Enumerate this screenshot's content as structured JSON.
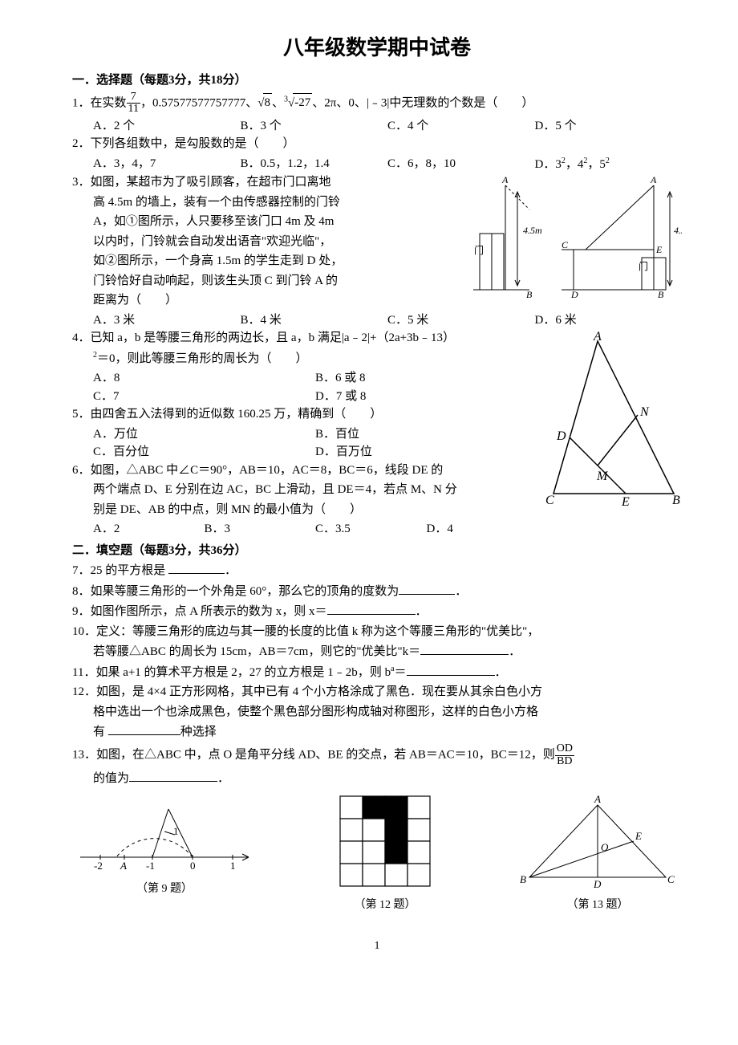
{
  "title": "八年级数学期中试卷",
  "section1": {
    "head": "一．选择题（每题3分，共18分）",
    "q1": {
      "stem_a": "1．在实数",
      "frac_n": "7",
      "frac_d": "11",
      "stem_b": "，0.57577577757777、",
      "sqrt8": "8",
      "stem_c": "、",
      "cbrt_idx": "3",
      "cbrt_rad": "-27",
      "stem_d": "、2π、0、|﹣3|中无理数的个数是（　　）",
      "A": "A．2 个",
      "B": "B．3 个",
      "C": "C．4 个",
      "D": "D．5 个"
    },
    "q2": {
      "stem": "2．下列各组数中，是勾股数的是（　　）",
      "A": "A．3，4，7",
      "B": "B．0.5，1.2，1.4",
      "C": "C．6，8，10",
      "D_a": "D．3",
      "D_s1": "2",
      "D_b": "，4",
      "D_s2": "2",
      "D_c": "，5",
      "D_s3": "2"
    },
    "q3": {
      "l1": "3．如图，某超市为了吸引顾客，在超市门口离地",
      "l2": "高 4.5m 的墙上，装有一个由传感器控制的门铃",
      "l3": "A，如①图所示，人只要移至该门口 4m 及 4m",
      "l4": "以内时，门铃就会自动发出语音\"欢迎光临\"，",
      "l5": "如②图所示，一个身高 1.5m 的学生走到 D 处，",
      "l6": "门铃恰好自动响起，则该生头顶 C 到门铃 A 的",
      "l7": "距离为（　　）",
      "A": "A．3 米",
      "B": "B．4 米",
      "C": "C．5 米",
      "D": "D．6 米",
      "fig": {
        "A": "A",
        "B": "B",
        "C": "C",
        "D": "D",
        "E": "E",
        "door": "门",
        "h": "4.5m"
      }
    },
    "q4": {
      "l1": "4．已知 a，b 是等腰三角形的两边长，且 a，b 满足|a﹣2|+（2a+3b﹣13）",
      "sup2": "2",
      "l2": "＝0，则此等腰三角形的周长为（　　）",
      "A": "A．8",
      "B": "B．6 或 8",
      "C": "C．7",
      "D": "D．7 或 8"
    },
    "q5": {
      "stem": "5．由四舍五入法得到的近似数 160.25 万，精确到（　　）",
      "A": "A．万位",
      "B": "B．百位",
      "C": "C．百分位",
      "D": "D．百万位"
    },
    "q6": {
      "l1": "6．如图，△ABC 中∠C＝90°，AB＝10，AC＝8，BC＝6，线段 DE 的",
      "l2": "两个端点 D、E 分别在边 AC，BC 上滑动，且 DE＝4，若点 M、N 分",
      "l3": "别是 DE、AB 的中点，则 MN 的最小值为（　　）",
      "A": "A．2",
      "B": "B．3",
      "C": "C．3.5",
      "D": "D．4",
      "fig": {
        "A": "A",
        "B": "B",
        "C": "C",
        "D": "D",
        "E": "E",
        "M": "M",
        "N": "N"
      }
    }
  },
  "section2": {
    "head": "二．填空题（每题3分，共36分）",
    "q7": "7．25 的平方根是 ",
    "q7b": "．",
    "q8": "8．如果等腰三角形的一个外角是 60°，那么它的顶角的度数为",
    "q8b": "．",
    "q9": "9．如图作图所示，点 A 所表示的数为 x，则 x＝",
    "q9b": "．",
    "q10a": "10．定义：等腰三角形的底边与其一腰的长度的比值 k 称为这个等腰三角形的\"优美比\"，",
    "q10b": "若等腰△ABC 的周长为 15cm，AB＝7cm，则它的\"优美比\"k＝",
    "q10c": "．",
    "q11a": "11．如果 a+1 的算术平方根是 2，27 的立方根是 1﹣2b，则 b",
    "q11sup": "a",
    "q11b": "＝",
    "q11c": "．",
    "q12a": "12．如图，是 4×4 正方形网格，其中已有 4 个小方格涂成了黑色．现在要从其余白色小方",
    "q12b": "格中选出一个也涂成黑色，使整个黑色部分图形构成轴对称图形，这样的白色小方格",
    "q12c": "有 ",
    "q12d": "种选择",
    "q13a": "13．如图，在△ABC 中，点 O 是角平分线 AD、BE 的交点，若 AB＝AC＝10，BC＝12，则",
    "q13fn": "OD",
    "q13fd": "BD",
    "q13b": "的值为",
    "q13c": "．",
    "caps": {
      "c9": "（第 9 题）",
      "c12": "（第 12 题）",
      "c13": "（第 13 题）"
    },
    "fig9": {
      "m2": "-2",
      "A": "A",
      "m1": "-1",
      "z": "0",
      "p1": "1",
      "one": "1"
    },
    "fig13": {
      "A": "A",
      "B": "B",
      "C": "C",
      "D": "D",
      "E": "E",
      "O": "O"
    },
    "grid": {
      "bg": "#ffffff",
      "line": "#000000",
      "fill": "#000000",
      "rows": 4,
      "cols": 4,
      "black": [
        [
          0,
          1
        ],
        [
          0,
          2
        ],
        [
          1,
          2
        ],
        [
          2,
          2
        ]
      ]
    }
  },
  "pagenum": "1",
  "colors": {
    "text": "#000000",
    "bg": "#ffffff",
    "line": "#000000"
  }
}
